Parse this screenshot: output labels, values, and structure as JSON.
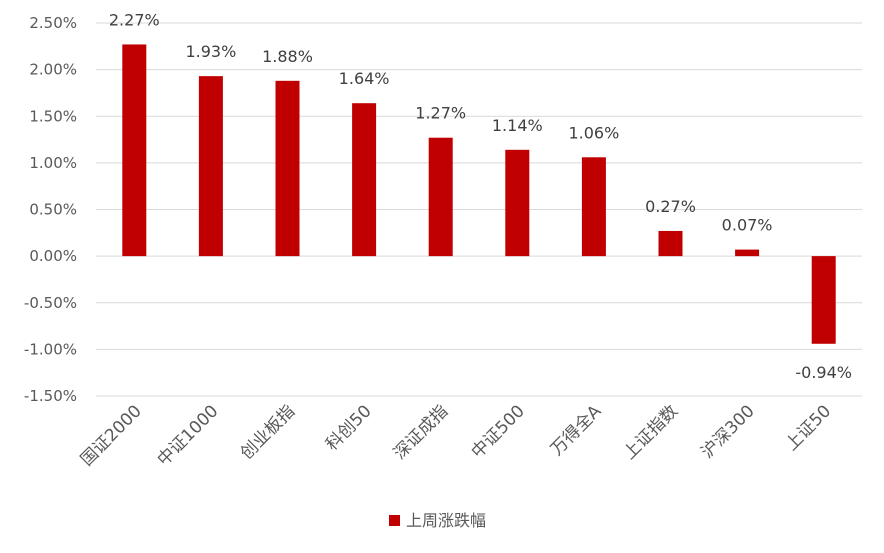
{
  "chart_data": {
    "type": "bar",
    "categories": [
      "国证2000",
      "中证1000",
      "创业板指",
      "科创50",
      "深证成指",
      "中证500",
      "万得全A",
      "上证指数",
      "沪深300",
      "上证50"
    ],
    "series": [
      {
        "name": "上周涨跌幅",
        "values": [
          2.27,
          1.93,
          1.88,
          1.64,
          1.27,
          1.14,
          1.06,
          0.27,
          0.07,
          -0.94
        ],
        "data_labels": [
          "2.27%",
          "1.93%",
          "1.88%",
          "1.64%",
          "1.27%",
          "1.14%",
          "1.06%",
          "0.27%",
          "0.07%",
          "-0.94%"
        ],
        "color": "#c00000"
      }
    ],
    "y_ticks": [
      2.5,
      2.0,
      1.5,
      1.0,
      0.5,
      0.0,
      -0.5,
      -1.0,
      -1.5
    ],
    "y_tick_labels": [
      "2.50%",
      "2.00%",
      "1.50%",
      "1.00%",
      "0.50%",
      "0.00%",
      "-0.50%",
      "-1.00%",
      "-1.50%"
    ],
    "ylim": [
      -1.5,
      2.5
    ],
    "grid": true,
    "legend_position": "bottom",
    "title": "",
    "xlabel": "",
    "ylabel": ""
  }
}
